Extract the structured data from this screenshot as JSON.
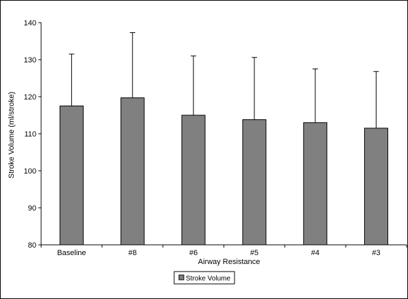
{
  "chart_data": {
    "type": "bar",
    "title": "",
    "xlabel": "Airway Resistance",
    "ylabel": "Stroke Volume (ml/stroke)",
    "categories": [
      "Baseline",
      "#8",
      "#6",
      "#5",
      "#4",
      "#3"
    ],
    "series": [
      {
        "name": "Stroke Volume",
        "values": [
          117.5,
          119.7,
          115.0,
          113.8,
          113.0,
          111.5
        ],
        "error_upper": [
          131.5,
          137.3,
          131.0,
          130.6,
          127.5,
          126.8
        ],
        "color": "#808080"
      }
    ],
    "ylim": [
      80,
      140
    ],
    "yticks": [
      80,
      90,
      100,
      110,
      120,
      130,
      140
    ],
    "grid": false,
    "legend_position": "bottom-center"
  }
}
